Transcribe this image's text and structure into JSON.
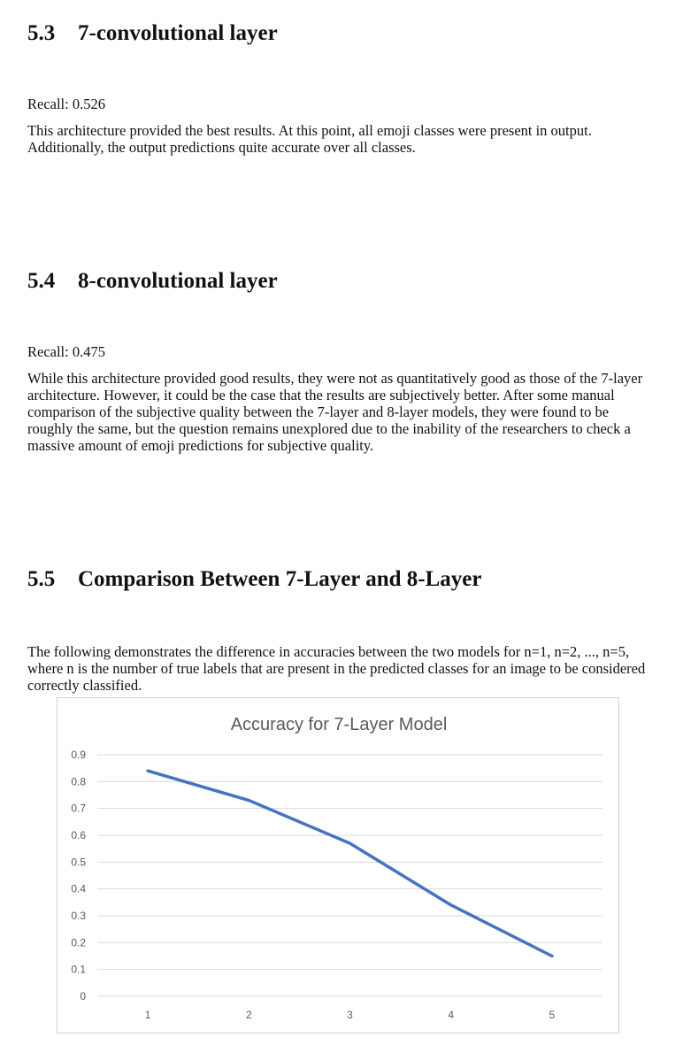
{
  "sections": [
    {
      "number": "5.3",
      "title": "7-convolutional layer",
      "recall": "Recall: 0.526",
      "paragraph": "This architecture provided the best results. At this point, all emoji classes were present in output. Additionally, the output predictions quite accurate over all classes."
    },
    {
      "number": "5.4",
      "title": "8-convolutional layer",
      "recall": "Recall: 0.475",
      "paragraph": "While this architecture provided good results, they were not as quantitatively good as those of the 7-layer architecture. However, it could be the case that the results are subjectively better. After some manual comparison of the subjective quality between the 7-layer and 8-layer models, they were found to be roughly the same, but the question remains unexplored due to the inability of the researchers to check a massive amount of emoji predictions for subjective quality."
    },
    {
      "number": "5.5",
      "title": "Comparison Between 7-Layer and 8-Layer",
      "paragraph": "The following demonstrates the difference in accuracies between the two models for n=1, n=2, ..., n=5, where n is the number of true labels that are present in the predicted classes for an image to be considered correctly classified."
    }
  ],
  "chart_data": {
    "type": "line",
    "title": "Accuracy for 7-Layer Model",
    "xlabel": "",
    "ylabel": "",
    "categories": [
      "1",
      "2",
      "3",
      "4",
      "5"
    ],
    "values": [
      0.84,
      0.73,
      0.57,
      0.34,
      0.15
    ],
    "ylim": [
      0,
      0.9
    ],
    "yticks": [
      "0",
      "0.1",
      "0.2",
      "0.3",
      "0.4",
      "0.5",
      "0.6",
      "0.7",
      "0.8",
      "0.9"
    ],
    "grid": true,
    "line_color": "#4472c4",
    "grid_color": "#d9d9d9"
  }
}
